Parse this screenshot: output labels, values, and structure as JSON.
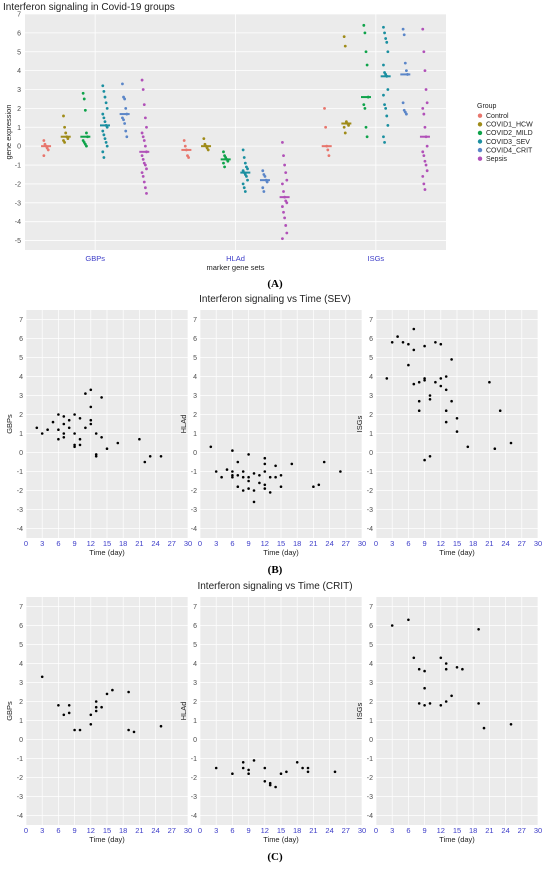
{
  "chart_data": [
    {
      "id": "A",
      "type": "scatter",
      "title": "Interferon signaling in Covid-19 groups",
      "xlabel": "marker gene sets",
      "ylabel": "gene expression",
      "categories": [
        "GBPs",
        "HLAd",
        "ISGs"
      ],
      "ylim": [
        -5.5,
        7
      ],
      "yticks": [
        -5,
        -4,
        -3,
        -2,
        -1,
        0,
        1,
        2,
        3,
        4,
        5,
        6,
        7
      ],
      "grid": true,
      "legend_position": "right",
      "legend_title": "Group",
      "series": [
        {
          "name": "Control",
          "color": "#e8766d",
          "values": [
            [
              0.3,
              0.1,
              0.0,
              -0.1,
              -0.2,
              -0.5
            ],
            [
              0.3,
              0.0,
              -0.2,
              -0.5,
              -0.6
            ],
            [
              2.0,
              1.0,
              0.0,
              -0.2,
              -0.5
            ]
          ]
        },
        {
          "name": "COVID1_HCW",
          "color": "#9f8b18",
          "values": [
            [
              1.6,
              1.0,
              0.7,
              0.5,
              0.4,
              0.3,
              0.2
            ],
            [
              0.4,
              0.1,
              0.0,
              -0.1,
              -0.2
            ],
            [
              5.8,
              5.3,
              1.3,
              1.2,
              1.1,
              1.0,
              0.7
            ]
          ]
        },
        {
          "name": "COVID2_MILD",
          "color": "#0ea34a",
          "values": [
            [
              2.8,
              2.5,
              1.9,
              0.7,
              0.5,
              0.3,
              0.2,
              0.1,
              0.0
            ],
            [
              -0.3,
              -0.5,
              -0.6,
              -0.7,
              -0.8,
              -0.9,
              -1.1
            ],
            [
              6.4,
              6.0,
              5.0,
              4.3,
              2.6,
              2.2,
              2.0,
              1.0,
              0.5
            ]
          ]
        },
        {
          "name": "COVID3_SEV",
          "color": "#1a8fa0",
          "values": [
            [
              3.2,
              2.9,
              2.6,
              2.3,
              2.0,
              1.7,
              1.5,
              1.3,
              1.1,
              1.0,
              0.8,
              0.6,
              0.4,
              0.2,
              0.0,
              -0.3,
              -0.6
            ],
            [
              -0.2,
              -0.6,
              -0.9,
              -1.1,
              -1.2,
              -1.3,
              -1.4,
              -1.5,
              -1.6,
              -1.8,
              -2.0,
              -2.2,
              -2.4
            ],
            [
              6.3,
              6.0,
              5.7,
              5.5,
              5.0,
              4.3,
              3.9,
              3.8,
              3.7,
              3.0,
              2.7,
              2.2,
              2.0,
              1.6,
              1.1,
              0.5,
              0.2
            ]
          ]
        },
        {
          "name": "COVID4_CRIT",
          "color": "#5b86c8",
          "values": [
            [
              3.3,
              2.6,
              2.5,
              2.0,
              1.7,
              1.5,
              1.4,
              1.2,
              0.8,
              0.5
            ],
            [
              -1.3,
              -1.5,
              -1.6,
              -1.8,
              -1.9,
              -2.2,
              -2.4
            ],
            [
              6.2,
              5.9,
              4.4,
              4.0,
              3.8,
              2.3,
              1.9,
              1.8,
              1.7
            ]
          ]
        },
        {
          "name": "Sepsis",
          "color": "#b151b8",
          "values": [
            [
              3.5,
              3.0,
              2.2,
              1.5,
              1.0,
              0.7,
              0.5,
              0.3,
              0.0,
              -0.3,
              -0.5,
              -0.7,
              -0.9,
              -1.0,
              -1.2,
              -1.4,
              -1.6,
              -1.9,
              -2.2,
              -2.5
            ],
            [
              0.2,
              -0.5,
              -1.0,
              -1.4,
              -1.8,
              -2.0,
              -2.4,
              -2.7,
              -2.9,
              -3.0,
              -3.2,
              -3.5,
              -3.8,
              -4.2,
              -4.6,
              -4.9
            ],
            [
              6.2,
              5.0,
              4.0,
              3.0,
              2.3,
              2.0,
              1.7,
              1.0,
              0.5,
              0.0,
              -0.3,
              -0.5,
              -0.8,
              -1.0,
              -1.3,
              -1.6,
              -2.0,
              -2.3
            ]
          ]
        }
      ]
    },
    {
      "id": "B",
      "type": "scatter",
      "title": "Interferon signaling vs Time (SEV)",
      "xlabel": "Time (day)",
      "xlim": [
        0,
        30
      ],
      "ylim": [
        -4.5,
        7.5
      ],
      "xticks": [
        0,
        3,
        6,
        9,
        12,
        15,
        18,
        21,
        24,
        27,
        30
      ],
      "yticks": [
        -4,
        -3,
        -2,
        -1,
        0,
        1,
        2,
        3,
        4,
        5,
        6,
        7
      ],
      "grid": true,
      "panels": [
        {
          "ylabel": "GBPs",
          "points": [
            [
              2,
              1.3
            ],
            [
              3,
              1.0
            ],
            [
              4,
              1.2
            ],
            [
              5,
              1.6
            ],
            [
              6,
              2.0
            ],
            [
              6,
              1.2
            ],
            [
              6,
              0.7
            ],
            [
              7,
              1.9
            ],
            [
              7,
              1.5
            ],
            [
              7,
              0.8
            ],
            [
              7,
              1.0
            ],
            [
              8,
              1.3
            ],
            [
              8,
              1.7
            ],
            [
              9,
              2.0
            ],
            [
              9,
              1.0
            ],
            [
              9,
              0.4
            ],
            [
              9,
              0.3
            ],
            [
              10,
              1.8
            ],
            [
              10,
              0.7
            ],
            [
              10,
              0.4
            ],
            [
              11,
              1.3
            ],
            [
              11,
              3.1
            ],
            [
              12,
              3.3
            ],
            [
              12,
              2.4
            ],
            [
              12,
              1.7
            ],
            [
              12,
              1.5
            ],
            [
              13,
              1.0
            ],
            [
              13,
              -0.1
            ],
            [
              13,
              -0.2
            ],
            [
              14,
              2.9
            ],
            [
              14,
              0.8
            ],
            [
              15,
              0.2
            ],
            [
              17,
              0.5
            ],
            [
              21,
              0.7
            ],
            [
              22,
              -0.5
            ],
            [
              23,
              -0.2
            ],
            [
              25,
              -0.2
            ]
          ]
        },
        {
          "ylabel": "HLAd",
          "points": [
            [
              2,
              0.3
            ],
            [
              3,
              -1.0
            ],
            [
              4,
              -1.3
            ],
            [
              5,
              -0.9
            ],
            [
              6,
              -1.2
            ],
            [
              6,
              -1.0
            ],
            [
              6,
              -1.3
            ],
            [
              6,
              0.1
            ],
            [
              7,
              -1.2
            ],
            [
              7,
              -1.8
            ],
            [
              7,
              -0.5
            ],
            [
              8,
              -1.3
            ],
            [
              8,
              -1.0
            ],
            [
              8,
              -2.0
            ],
            [
              9,
              -0.1
            ],
            [
              9,
              -1.3
            ],
            [
              9,
              -1.5
            ],
            [
              9,
              -1.9
            ],
            [
              10,
              -2.6
            ],
            [
              10,
              -2.0
            ],
            [
              10,
              -1.1
            ],
            [
              11,
              -1.2
            ],
            [
              11,
              -1.6
            ],
            [
              12,
              -0.6
            ],
            [
              12,
              -0.3
            ],
            [
              12,
              -1.0
            ],
            [
              12,
              -1.7
            ],
            [
              12,
              -1.9
            ],
            [
              13,
              -1.3
            ],
            [
              13,
              -2.1
            ],
            [
              14,
              -0.7
            ],
            [
              14,
              -1.3
            ],
            [
              15,
              -1.8
            ],
            [
              15,
              -1.2
            ],
            [
              17,
              -0.6
            ],
            [
              21,
              -1.8
            ],
            [
              22,
              -1.7
            ],
            [
              23,
              -0.5
            ],
            [
              26,
              -1.0
            ]
          ]
        },
        {
          "ylabel": "ISGs",
          "points": [
            [
              2,
              3.9
            ],
            [
              3,
              5.8
            ],
            [
              4,
              6.1
            ],
            [
              5,
              5.8
            ],
            [
              6,
              4.6
            ],
            [
              6,
              5.7
            ],
            [
              7,
              5.4
            ],
            [
              7,
              6.5
            ],
            [
              7,
              3.6
            ],
            [
              8,
              3.7
            ],
            [
              8,
              2.2
            ],
            [
              8,
              2.7
            ],
            [
              9,
              5.6
            ],
            [
              9,
              3.9
            ],
            [
              9,
              3.8
            ],
            [
              9,
              -0.4
            ],
            [
              10,
              -0.2
            ],
            [
              10,
              2.8
            ],
            [
              10,
              3.0
            ],
            [
              11,
              5.8
            ],
            [
              11,
              3.7
            ],
            [
              12,
              3.9
            ],
            [
              12,
              3.5
            ],
            [
              12,
              5.7
            ],
            [
              13,
              2.2
            ],
            [
              13,
              4.0
            ],
            [
              13,
              3.3
            ],
            [
              13,
              1.6
            ],
            [
              14,
              4.9
            ],
            [
              14,
              2.7
            ],
            [
              15,
              1.1
            ],
            [
              15,
              1.8
            ],
            [
              17,
              0.3
            ],
            [
              21,
              3.7
            ],
            [
              22,
              0.2
            ],
            [
              23,
              2.2
            ],
            [
              25,
              0.5
            ]
          ]
        }
      ]
    },
    {
      "id": "C",
      "type": "scatter",
      "title": "Interferon signaling vs Time (CRIT)",
      "xlabel": "Time (day)",
      "xlim": [
        0,
        30
      ],
      "ylim": [
        -4.5,
        7.5
      ],
      "xticks": [
        0,
        3,
        6,
        9,
        12,
        15,
        18,
        21,
        24,
        27,
        30
      ],
      "yticks": [
        -4,
        -3,
        -2,
        -1,
        0,
        1,
        2,
        3,
        4,
        5,
        6,
        7
      ],
      "grid": true,
      "panels": [
        {
          "ylabel": "GBPs",
          "points": [
            [
              3,
              3.3
            ],
            [
              6,
              1.8
            ],
            [
              7,
              1.3
            ],
            [
              8,
              1.8
            ],
            [
              8,
              1.4
            ],
            [
              9,
              0.5
            ],
            [
              10,
              0.5
            ],
            [
              12,
              0.8
            ],
            [
              12,
              1.3
            ],
            [
              13,
              1.7
            ],
            [
              13,
              2.0
            ],
            [
              13,
              1.5
            ],
            [
              14,
              1.7
            ],
            [
              15,
              2.4
            ],
            [
              16,
              2.6
            ],
            [
              19,
              2.5
            ],
            [
              19,
              0.5
            ],
            [
              20,
              0.4
            ],
            [
              25,
              0.7
            ]
          ]
        },
        {
          "ylabel": "HLAd",
          "points": [
            [
              3,
              -1.5
            ],
            [
              6,
              -1.8
            ],
            [
              8,
              -1.2
            ],
            [
              8,
              -1.5
            ],
            [
              9,
              -1.6
            ],
            [
              9,
              -1.8
            ],
            [
              10,
              -1.1
            ],
            [
              12,
              -1.5
            ],
            [
              12,
              -2.2
            ],
            [
              13,
              -2.3
            ],
            [
              13,
              -2.4
            ],
            [
              14,
              -2.5
            ],
            [
              15,
              -1.8
            ],
            [
              16,
              -1.7
            ],
            [
              18,
              -1.2
            ],
            [
              19,
              -1.5
            ],
            [
              20,
              -1.5
            ],
            [
              20,
              -1.7
            ],
            [
              25,
              -1.7
            ]
          ]
        },
        {
          "ylabel": "ISGs",
          "points": [
            [
              3,
              6.0
            ],
            [
              6,
              6.3
            ],
            [
              7,
              4.3
            ],
            [
              8,
              1.9
            ],
            [
              8,
              3.7
            ],
            [
              9,
              1.8
            ],
            [
              9,
              2.7
            ],
            [
              9,
              3.6
            ],
            [
              10,
              1.9
            ],
            [
              12,
              1.8
            ],
            [
              12,
              4.3
            ],
            [
              13,
              4.0
            ],
            [
              13,
              2.0
            ],
            [
              13,
              3.7
            ],
            [
              14,
              2.3
            ],
            [
              15,
              3.8
            ],
            [
              16,
              3.7
            ],
            [
              19,
              5.8
            ],
            [
              19,
              1.9
            ],
            [
              20,
              0.6
            ],
            [
              25,
              0.8
            ]
          ]
        }
      ]
    }
  ],
  "panel_labels": [
    "(A)",
    "(B)",
    "(C)"
  ],
  "legend_title": "Group"
}
